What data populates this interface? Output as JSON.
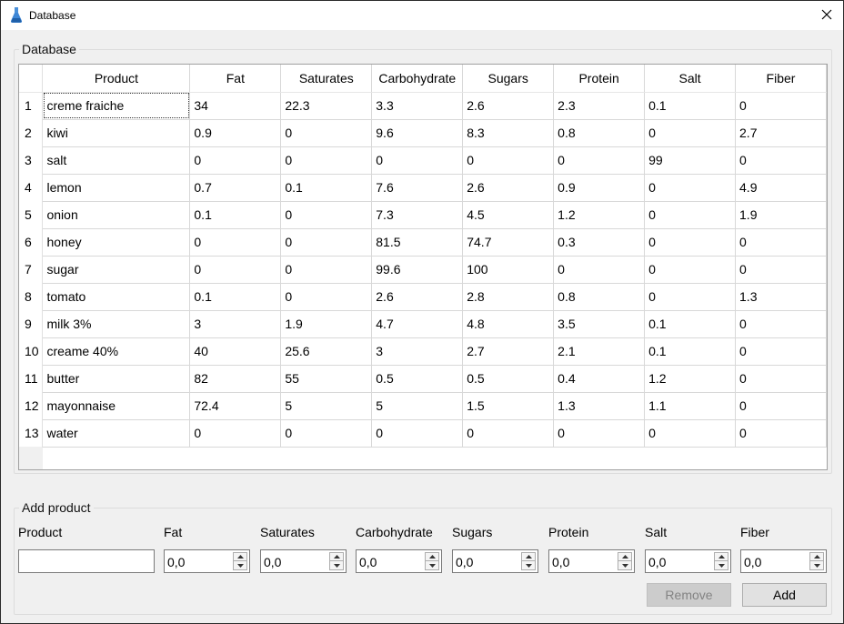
{
  "window": {
    "title": "Database",
    "icon": "flask-icon",
    "close_icon": "close-icon"
  },
  "database_group": {
    "title": "Database",
    "columns": [
      "Product",
      "Fat",
      "Saturates",
      "Carbohydrate",
      "Sugars",
      "Protein",
      "Salt",
      "Fiber"
    ],
    "rows": [
      {
        "num": "1",
        "cells": [
          "creme fraiche",
          "34",
          "22.3",
          "3.3",
          "2.6",
          "2.3",
          "0.1",
          "0"
        ]
      },
      {
        "num": "2",
        "cells": [
          "kiwi",
          "0.9",
          "0",
          "9.6",
          "8.3",
          "0.8",
          "0",
          "2.7"
        ]
      },
      {
        "num": "3",
        "cells": [
          "salt",
          "0",
          "0",
          "0",
          "0",
          "0",
          "99",
          "0"
        ]
      },
      {
        "num": "4",
        "cells": [
          "lemon",
          "0.7",
          "0.1",
          "7.6",
          "2.6",
          "0.9",
          "0",
          "4.9"
        ]
      },
      {
        "num": "5",
        "cells": [
          "onion",
          "0.1",
          "0",
          "7.3",
          "4.5",
          "1.2",
          "0",
          "1.9"
        ]
      },
      {
        "num": "6",
        "cells": [
          "honey",
          "0",
          "0",
          "81.5",
          "74.7",
          "0.3",
          "0",
          "0"
        ]
      },
      {
        "num": "7",
        "cells": [
          "sugar",
          "0",
          "0",
          "99.6",
          "100",
          "0",
          "0",
          "0"
        ]
      },
      {
        "num": "8",
        "cells": [
          "tomato",
          "0.1",
          "0",
          "2.6",
          "2.8",
          "0.8",
          "0",
          "1.3"
        ]
      },
      {
        "num": "9",
        "cells": [
          "milk 3%",
          "3",
          "1.9",
          "4.7",
          "4.8",
          "3.5",
          "0.1",
          "0"
        ]
      },
      {
        "num": "10",
        "cells": [
          "creame 40%",
          "40",
          "25.6",
          "3",
          "2.7",
          "2.1",
          "0.1",
          "0"
        ]
      },
      {
        "num": "11",
        "cells": [
          "butter",
          "82",
          "55",
          "0.5",
          "0.5",
          "0.4",
          "1.2",
          "0"
        ]
      },
      {
        "num": "12",
        "cells": [
          "mayonnaise",
          "72.4",
          "5",
          "5",
          "1.5",
          "1.3",
          "1.1",
          "0"
        ]
      },
      {
        "num": "13",
        "cells": [
          "water",
          "0",
          "0",
          "0",
          "0",
          "0",
          "0",
          "0"
        ]
      }
    ]
  },
  "add_product": {
    "title": "Add product",
    "product_label": "Product",
    "product_value": "",
    "fields": [
      {
        "label": "Fat",
        "value": "0,0"
      },
      {
        "label": "Saturates",
        "value": "0,0"
      },
      {
        "label": "Carbohydrate",
        "value": "0,0"
      },
      {
        "label": "Sugars",
        "value": "0,0"
      },
      {
        "label": "Protein",
        "value": "0,0"
      },
      {
        "label": "Salt",
        "value": "0,0"
      },
      {
        "label": "Fiber",
        "value": "0,0"
      }
    ],
    "remove_label": "Remove",
    "add_label": "Add"
  }
}
